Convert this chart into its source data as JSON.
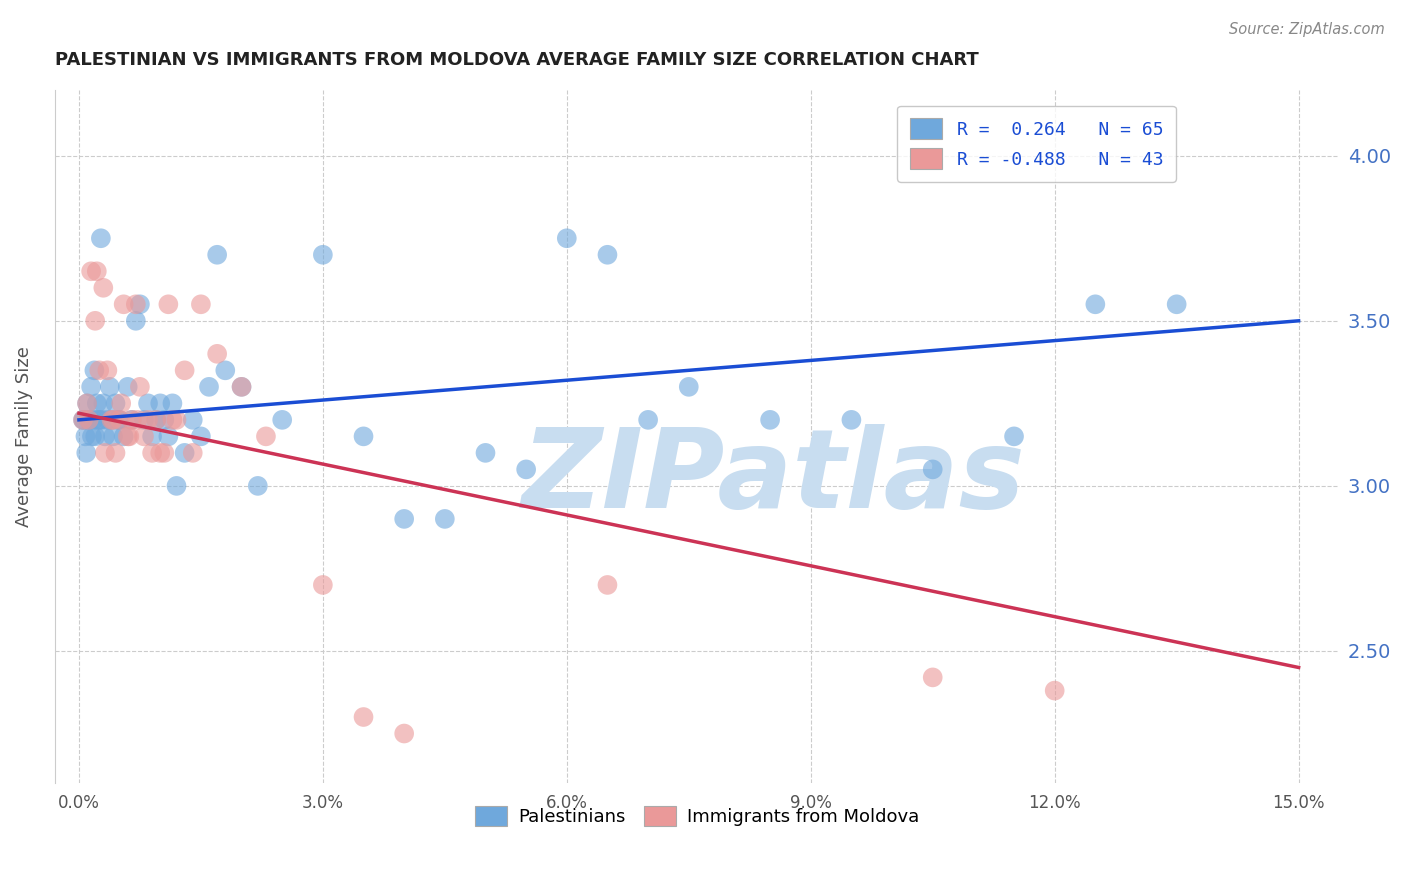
{
  "title": "PALESTINIAN VS IMMIGRANTS FROM MOLDOVA AVERAGE FAMILY SIZE CORRELATION CHART",
  "source": "Source: ZipAtlas.com",
  "ylabel": "Average Family Size",
  "xlabel_ticks": [
    "0.0%",
    "3.0%",
    "6.0%",
    "9.0%",
    "12.0%",
    "15.0%"
  ],
  "xlabel_vals": [
    0.0,
    3.0,
    6.0,
    9.0,
    12.0,
    15.0
  ],
  "ytick_vals": [
    2.5,
    3.0,
    3.5,
    4.0
  ],
  "right_ytick_vals": [
    2.5,
    3.0,
    3.5,
    4.0
  ],
  "right_ytick_labels": [
    "2.50",
    "3.00",
    "3.50",
    "4.00"
  ],
  "blue_R": 0.264,
  "blue_N": 65,
  "pink_R": -0.488,
  "pink_N": 43,
  "blue_color": "#6fa8dc",
  "pink_color": "#ea9999",
  "blue_line_color": "#1a4dd4",
  "pink_line_color": "#cc3355",
  "legend_blue_label": "Palestinians",
  "legend_pink_label": "Immigrants from Moldova",
  "watermark": "ZIPatlas",
  "watermark_color": "#c8ddf0",
  "blue_scatter_x": [
    0.05,
    0.08,
    0.1,
    0.12,
    0.15,
    0.18,
    0.2,
    0.22,
    0.25,
    0.28,
    0.3,
    0.32,
    0.35,
    0.38,
    0.4,
    0.42,
    0.45,
    0.48,
    0.5,
    0.55,
    0.6,
    0.65,
    0.7,
    0.75,
    0.8,
    0.85,
    0.9,
    0.95,
    1.0,
    1.05,
    1.1,
    1.15,
    1.2,
    1.3,
    1.4,
    1.5,
    1.6,
    1.7,
    1.8,
    2.0,
    2.2,
    2.5,
    3.0,
    3.5,
    4.0,
    4.5,
    5.0,
    5.5,
    6.0,
    6.5,
    7.0,
    7.5,
    8.5,
    9.5,
    10.5,
    11.5,
    12.5,
    13.5,
    0.06,
    0.09,
    0.13,
    0.16,
    0.19,
    0.23,
    0.27
  ],
  "blue_scatter_y": [
    3.2,
    3.15,
    3.25,
    3.2,
    3.3,
    3.2,
    3.15,
    3.25,
    3.2,
    3.2,
    3.25,
    3.15,
    3.2,
    3.3,
    3.2,
    3.15,
    3.25,
    3.2,
    3.2,
    3.15,
    3.3,
    3.2,
    3.5,
    3.55,
    3.2,
    3.25,
    3.15,
    3.2,
    3.25,
    3.2,
    3.15,
    3.25,
    3.0,
    3.1,
    3.2,
    3.15,
    3.3,
    3.7,
    3.35,
    3.3,
    3.0,
    3.2,
    3.7,
    3.15,
    2.9,
    2.9,
    3.1,
    3.05,
    3.75,
    3.7,
    3.2,
    3.3,
    3.2,
    3.2,
    3.05,
    3.15,
    3.55,
    3.55,
    3.2,
    3.1,
    3.2,
    3.15,
    3.35,
    3.2,
    3.75
  ],
  "pink_scatter_x": [
    0.05,
    0.1,
    0.15,
    0.2,
    0.25,
    0.3,
    0.35,
    0.4,
    0.45,
    0.5,
    0.55,
    0.6,
    0.65,
    0.7,
    0.75,
    0.8,
    0.85,
    0.9,
    0.95,
    1.0,
    1.05,
    1.1,
    1.15,
    1.2,
    1.3,
    1.5,
    1.7,
    2.0,
    2.3,
    3.0,
    3.5,
    4.0,
    0.12,
    0.22,
    0.32,
    0.42,
    0.52,
    0.62,
    0.72,
    1.4,
    6.5,
    10.5,
    12.0
  ],
  "pink_scatter_y": [
    3.2,
    3.25,
    3.65,
    3.5,
    3.35,
    3.6,
    3.35,
    3.2,
    3.1,
    3.2,
    3.55,
    3.15,
    3.2,
    3.55,
    3.3,
    3.15,
    3.2,
    3.1,
    3.2,
    3.1,
    3.1,
    3.55,
    3.2,
    3.2,
    3.35,
    3.55,
    3.4,
    3.3,
    3.15,
    2.7,
    2.3,
    2.25,
    3.2,
    3.65,
    3.1,
    3.2,
    3.25,
    3.15,
    3.2,
    3.1,
    2.7,
    2.42,
    2.38
  ],
  "xlim": [
    -0.3,
    15.5
  ],
  "ylim": [
    2.1,
    4.2
  ],
  "blue_line_x0": 0.0,
  "blue_line_x1": 15.0,
  "blue_line_y0": 3.2,
  "blue_line_y1": 3.5,
  "pink_line_x0": 0.0,
  "pink_line_x1": 15.0,
  "pink_line_y0": 3.22,
  "pink_line_y1": 2.45,
  "figsize": [
    14.06,
    8.92
  ],
  "dpi": 100
}
